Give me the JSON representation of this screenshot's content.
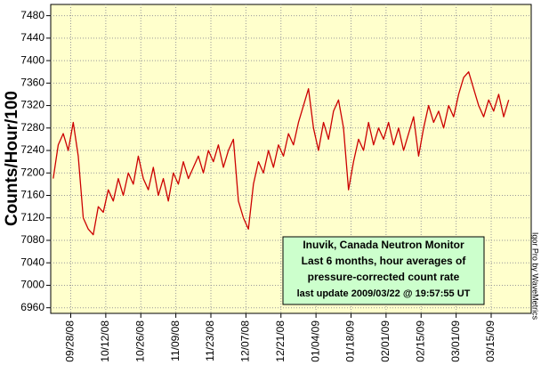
{
  "chart_data": {
    "type": "line",
    "y_label": "Counts/Hour/100",
    "annotation": [
      "Inuvik, Canada Neutron Monitor",
      "Last 6 months, hour averages of",
      "pressure-corrected count rate",
      "last update 2009/03/22 @ 19:57:55 UT"
    ],
    "credit": "Igor Pro by WaveMetrics",
    "x": [
      "2008-09-21",
      "2008-09-23",
      "2008-09-25",
      "2008-09-27",
      "2008-09-29",
      "2008-10-01",
      "2008-10-03",
      "2008-10-05",
      "2008-10-07",
      "2008-10-09",
      "2008-10-11",
      "2008-10-13",
      "2008-10-15",
      "2008-10-17",
      "2008-10-19",
      "2008-10-21",
      "2008-10-23",
      "2008-10-25",
      "2008-10-27",
      "2008-10-29",
      "2008-10-31",
      "2008-11-02",
      "2008-11-04",
      "2008-11-06",
      "2008-11-08",
      "2008-11-10",
      "2008-11-12",
      "2008-11-14",
      "2008-11-16",
      "2008-11-18",
      "2008-11-20",
      "2008-11-22",
      "2008-11-24",
      "2008-11-26",
      "2008-11-28",
      "2008-11-30",
      "2008-12-02",
      "2008-12-04",
      "2008-12-06",
      "2008-12-08",
      "2008-12-10",
      "2008-12-12",
      "2008-12-14",
      "2008-12-16",
      "2008-12-18",
      "2008-12-20",
      "2008-12-22",
      "2008-12-24",
      "2008-12-26",
      "2008-12-28",
      "2008-12-30",
      "2009-01-01",
      "2009-01-03",
      "2009-01-05",
      "2009-01-07",
      "2009-01-09",
      "2009-01-11",
      "2009-01-13",
      "2009-01-15",
      "2009-01-17",
      "2009-01-19",
      "2009-01-21",
      "2009-01-23",
      "2009-01-25",
      "2009-01-27",
      "2009-01-29",
      "2009-01-31",
      "2009-02-02",
      "2009-02-04",
      "2009-02-06",
      "2009-02-08",
      "2009-02-10",
      "2009-02-12",
      "2009-02-14",
      "2009-02-16",
      "2009-02-18",
      "2009-02-20",
      "2009-02-22",
      "2009-02-24",
      "2009-02-26",
      "2009-02-28",
      "2009-03-02",
      "2009-03-04",
      "2009-03-06",
      "2009-03-08",
      "2009-03-10",
      "2009-03-12",
      "2009-03-14",
      "2009-03-16",
      "2009-03-18",
      "2009-03-20",
      "2009-03-22"
    ],
    "series": [
      {
        "name": "Inuvik",
        "color": "#cc0000",
        "values": [
          7190,
          7250,
          7270,
          7240,
          7290,
          7230,
          7120,
          7100,
          7090,
          7140,
          7130,
          7170,
          7150,
          7190,
          7160,
          7200,
          7180,
          7230,
          7190,
          7170,
          7210,
          7160,
          7190,
          7150,
          7200,
          7180,
          7220,
          7190,
          7210,
          7230,
          7200,
          7240,
          7220,
          7250,
          7210,
          7240,
          7260,
          7150,
          7120,
          7100,
          7180,
          7220,
          7200,
          7240,
          7210,
          7250,
          7230,
          7270,
          7250,
          7290,
          7320,
          7350,
          7280,
          7240,
          7290,
          7260,
          7310,
          7330,
          7280,
          7170,
          7220,
          7260,
          7240,
          7290,
          7250,
          7280,
          7260,
          7290,
          7250,
          7280,
          7240,
          7270,
          7300,
          7230,
          7280,
          7320,
          7290,
          7310,
          7280,
          7320,
          7300,
          7340,
          7370,
          7380,
          7350,
          7320,
          7300,
          7330,
          7310,
          7340,
          7300,
          7330
        ]
      }
    ],
    "xlim": [
      "2008-09-20",
      "2009-03-31"
    ],
    "xticks": [
      {
        "value": "2008-09-28",
        "label": "09/28/08"
      },
      {
        "value": "2008-10-12",
        "label": "10/12/08"
      },
      {
        "value": "2008-10-26",
        "label": "10/26/08"
      },
      {
        "value": "2008-11-09",
        "label": "11/09/08"
      },
      {
        "value": "2008-11-23",
        "label": "11/23/08"
      },
      {
        "value": "2008-12-07",
        "label": "12/07/08"
      },
      {
        "value": "2008-12-21",
        "label": "12/21/08"
      },
      {
        "value": "2009-01-04",
        "label": "01/04/09"
      },
      {
        "value": "2009-01-18",
        "label": "01/18/09"
      },
      {
        "value": "2009-02-01",
        "label": "02/01/09"
      },
      {
        "value": "2009-02-15",
        "label": "02/15/09"
      },
      {
        "value": "2009-03-01",
        "label": "03/01/09"
      },
      {
        "value": "2009-03-15",
        "label": "03/15/09"
      }
    ],
    "ylim": [
      6950,
      7500
    ],
    "yticks": [
      6960,
      7000,
      7040,
      7080,
      7120,
      7160,
      7200,
      7240,
      7280,
      7320,
      7360,
      7400,
      7440,
      7480
    ],
    "grid": true
  }
}
